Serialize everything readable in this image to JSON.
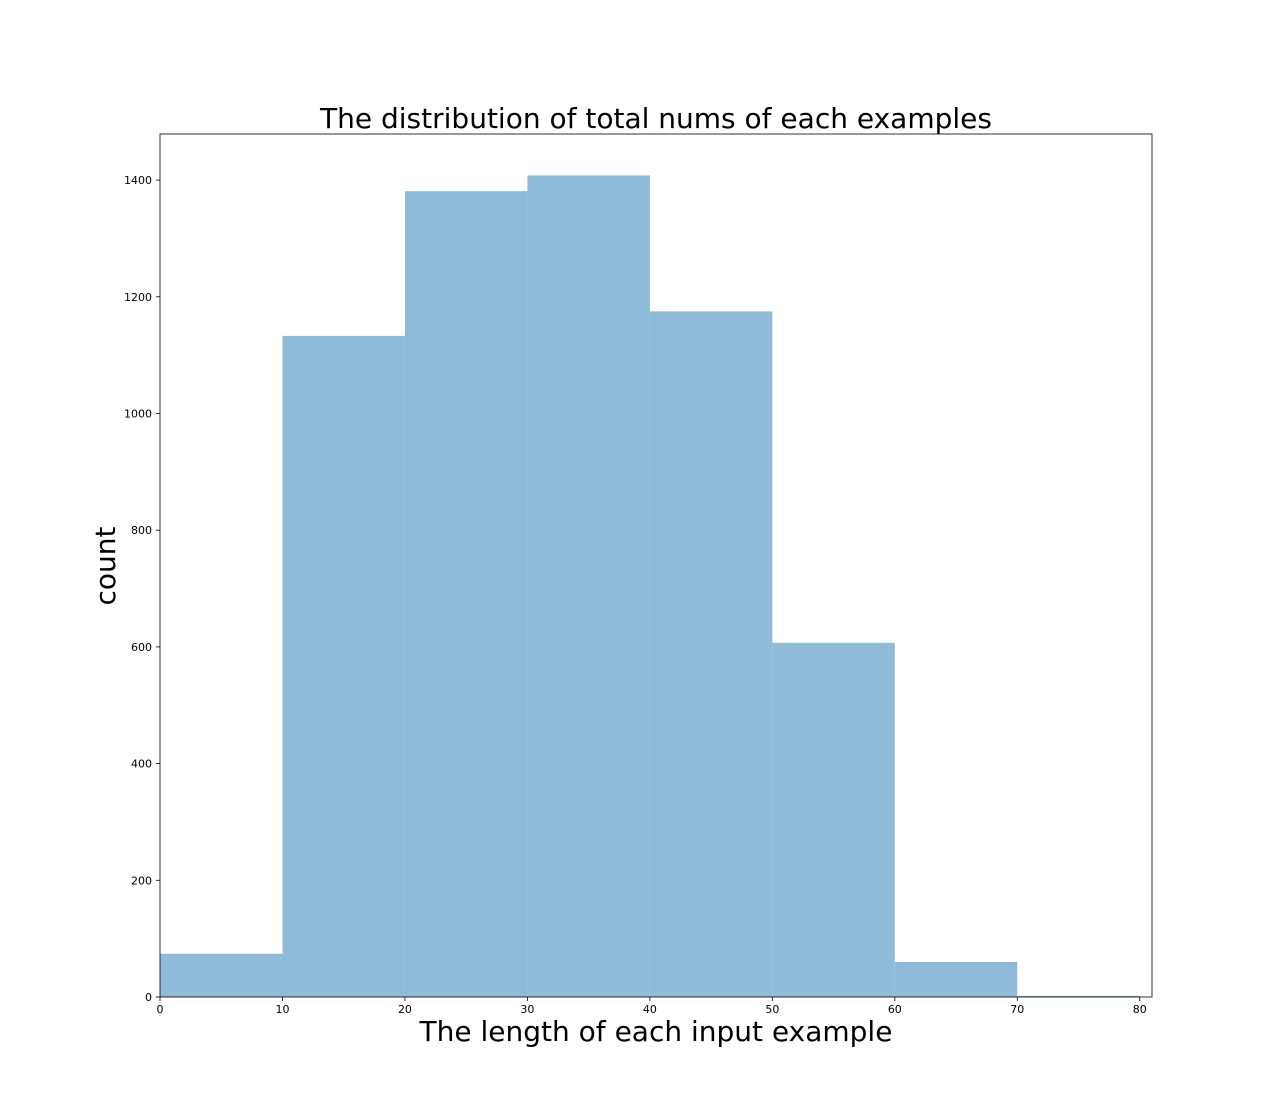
{
  "chart_data": {
    "type": "histogram",
    "title": "The distribution of total nums of each examples",
    "x_label": "The length of each input example",
    "y_label": "count",
    "bins": [
      0,
      10,
      20,
      30,
      40,
      50,
      60,
      70,
      80
    ],
    "values": [
      74,
      1133,
      1381,
      1408,
      1175,
      607,
      60,
      2
    ],
    "color": "#8fbbd9",
    "xlim": [
      0,
      81
    ],
    "xticks": [
      0,
      10,
      20,
      30,
      40,
      50,
      60,
      70,
      80
    ],
    "ylim": [
      0,
      1479
    ],
    "yticks": [
      0,
      200,
      400,
      600,
      800,
      1000,
      1200,
      1400
    ]
  }
}
